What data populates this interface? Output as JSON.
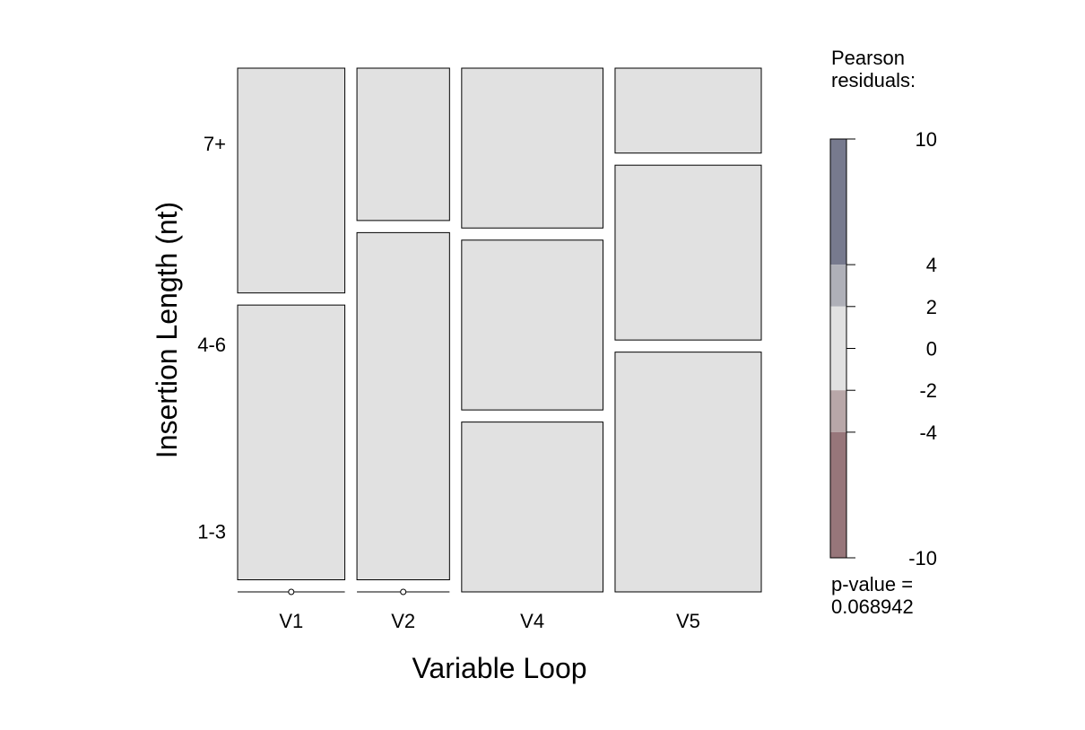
{
  "chart_data": {
    "type": "mosaic",
    "xlabel": "Variable Loop",
    "ylabel": "Insertion Length (nt)",
    "x_categories": [
      "V1",
      "V2",
      "V4",
      "V5"
    ],
    "y_categories": [
      "1-3",
      "4-6",
      "7+"
    ],
    "column_proportions": [
      0.22,
      0.19,
      0.29,
      0.3
    ],
    "cell_proportions": [
      [
        0.0,
        0.55,
        0.45
      ],
      [
        0.0,
        0.695,
        0.305
      ],
      [
        0.34,
        0.34,
        0.32
      ],
      [
        0.48,
        0.35,
        0.17
      ]
    ],
    "residual_fill": "#e1e1e1",
    "legend": {
      "title": [
        "Pearson",
        "residuals:"
      ],
      "breaks": [
        10,
        4,
        2,
        0,
        -2,
        -4,
        -10
      ],
      "tick_labels": [
        "10",
        "4",
        "2",
        "0",
        "-2",
        "-4",
        "-10"
      ],
      "bands": [
        {
          "from": 4,
          "to": 10,
          "color": "#777a8e"
        },
        {
          "from": 2,
          "to": 4,
          "color": "#afb0b8"
        },
        {
          "from": -2,
          "to": 2,
          "color": "#e1e1e1"
        },
        {
          "from": -4,
          "to": -2,
          "color": "#b8a7a8"
        },
        {
          "from": -10,
          "to": -4,
          "color": "#97767a"
        }
      ],
      "p_value_label": "p-value =",
      "p_value": "0.068942"
    }
  }
}
